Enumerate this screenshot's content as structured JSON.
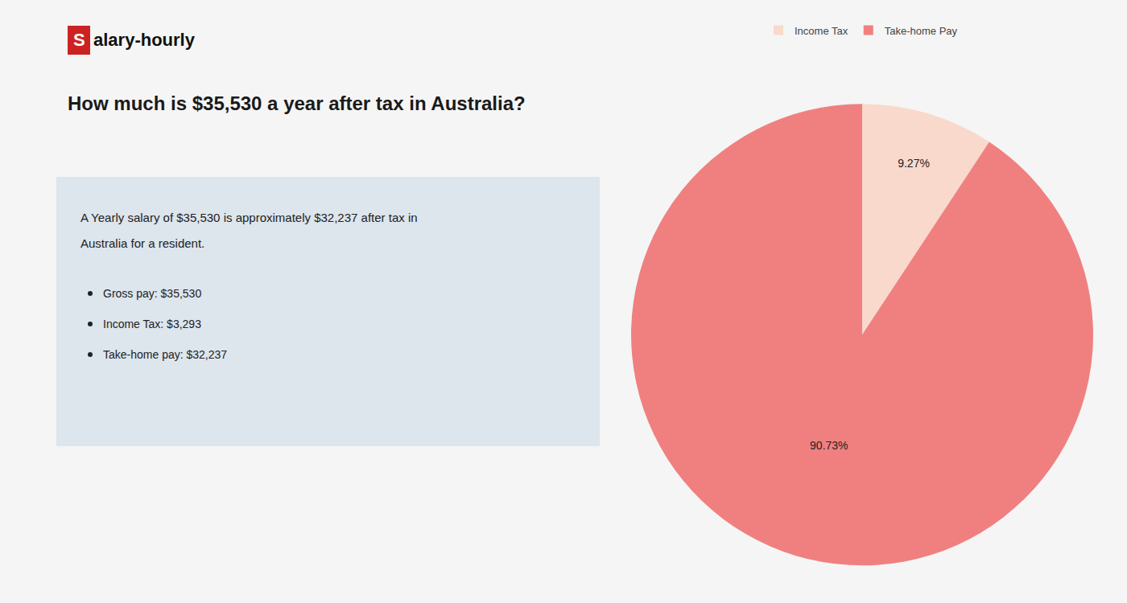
{
  "chart_data": {
    "type": "pie",
    "title": "How much is $35,530 a year after tax in Australia?",
    "annotations": [
      "Salary-hourly",
      "A Yearly salary of $35,530 is approximately $32,237 after tax in",
      "Australia for a resident.",
      "Gross pay: $35,530",
      "Income Tax: $3,293",
      "Take-home pay: $32,237"
    ],
    "categories": [
      "Income Tax",
      "Take-home Pay"
    ],
    "values": [
      9.27,
      90.73
    ],
    "value_labels": [
      "9.27%",
      "90.73%"
    ],
    "colors": [
      "#f9d9cc",
      "#f08080"
    ],
    "data_labels": true,
    "legend": "top"
  }
}
